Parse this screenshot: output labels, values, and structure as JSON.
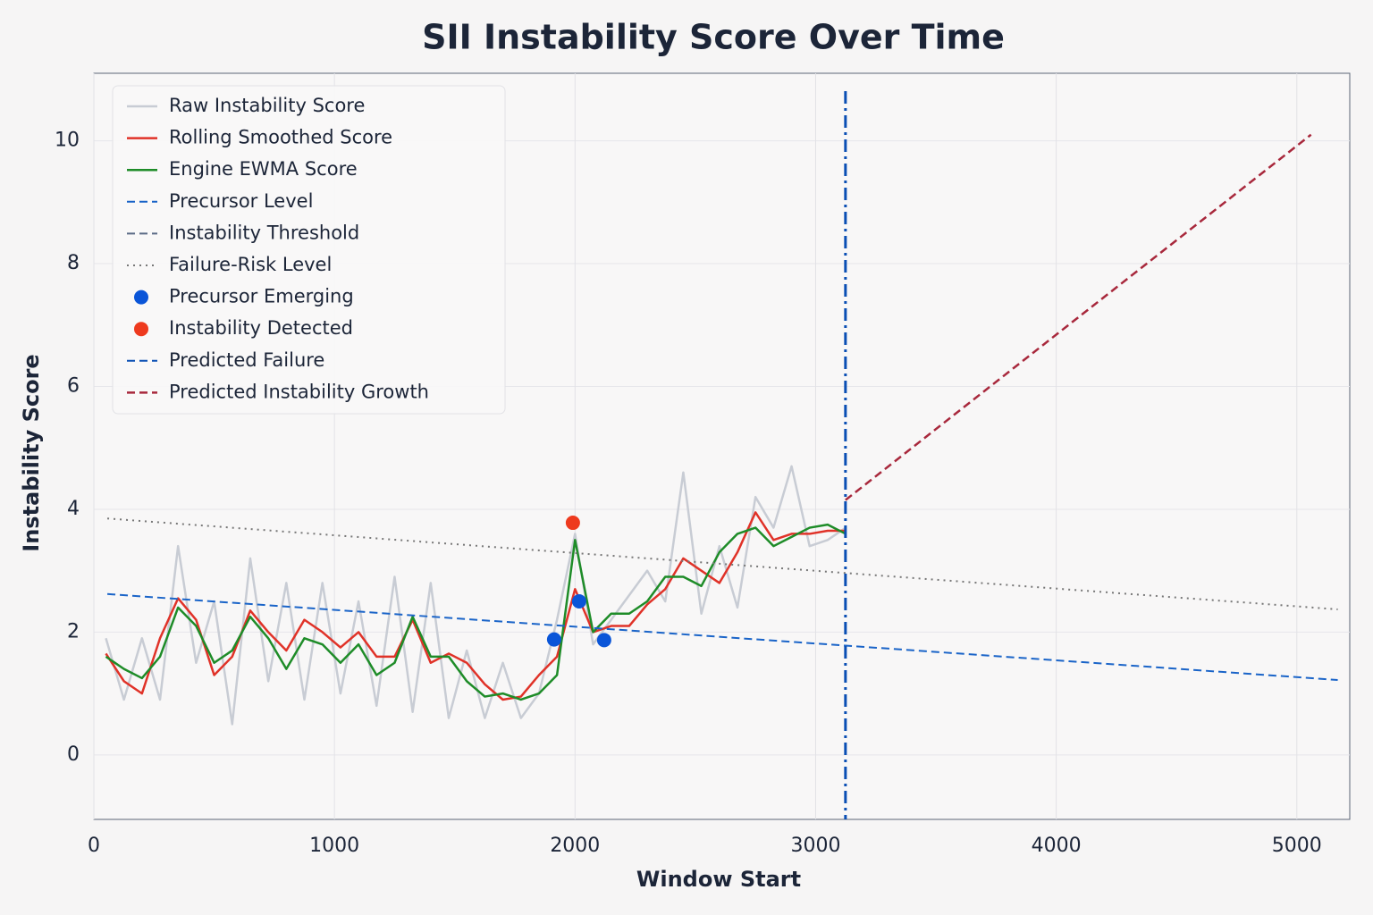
{
  "chart_data": {
    "type": "line",
    "title": "SII Instability Score Over Time",
    "xlabel": "Window Start",
    "ylabel": "Instability Score",
    "xlim": [
      0,
      5220
    ],
    "ylim": [
      -1.05,
      11.1
    ],
    "xticks": [
      0,
      1000,
      2000,
      3000,
      4000,
      5000
    ],
    "yticks": [
      0,
      2,
      4,
      6,
      8,
      10
    ],
    "grid": true,
    "legend": "upper left",
    "x": [
      50,
      125,
      200,
      275,
      350,
      425,
      500,
      575,
      650,
      725,
      800,
      875,
      950,
      1025,
      1100,
      1175,
      1250,
      1325,
      1400,
      1475,
      1550,
      1625,
      1700,
      1775,
      1850,
      1925,
      2000,
      2075,
      2150,
      2225,
      2300,
      2375,
      2450,
      2525,
      2600,
      2675,
      2750,
      2825,
      2900,
      2975,
      3050,
      3125
    ],
    "series": [
      {
        "name": "Raw Instability Score",
        "color": "#c8ccd4",
        "style": "solid",
        "width": 2.5,
        "kind": "line",
        "values": [
          1.9,
          0.9,
          1.9,
          0.9,
          3.4,
          1.5,
          2.5,
          0.5,
          3.2,
          1.2,
          2.8,
          0.9,
          2.8,
          1.0,
          2.5,
          0.8,
          2.9,
          0.7,
          2.8,
          0.6,
          1.7,
          0.6,
          1.5,
          0.6,
          1.0,
          2.2,
          3.6,
          1.8,
          2.2,
          2.6,
          3.0,
          2.5,
          4.6,
          2.3,
          3.4,
          2.4,
          4.2,
          3.7,
          4.7,
          3.4,
          3.5,
          3.7
        ]
      },
      {
        "name": "Rolling Smoothed Score",
        "color": "#e03228",
        "style": "solid",
        "width": 2.5,
        "kind": "line",
        "values": [
          1.65,
          1.2,
          1.0,
          1.9,
          2.55,
          2.2,
          1.3,
          1.6,
          2.35,
          2.0,
          1.7,
          2.2,
          2.0,
          1.75,
          2.0,
          1.6,
          1.6,
          2.2,
          1.5,
          1.65,
          1.5,
          1.15,
          0.9,
          0.95,
          1.3,
          1.6,
          2.7,
          2.0,
          2.1,
          2.1,
          2.45,
          2.7,
          3.2,
          3.0,
          2.8,
          3.3,
          3.95,
          3.5,
          3.6,
          3.6,
          3.65,
          3.65
        ]
      },
      {
        "name": "Engine EWMA Score",
        "color": "#1e8c28",
        "style": "solid",
        "width": 2.5,
        "kind": "line",
        "values": [
          1.6,
          1.4,
          1.25,
          1.6,
          2.4,
          2.1,
          1.5,
          1.7,
          2.25,
          1.9,
          1.4,
          1.9,
          1.8,
          1.5,
          1.8,
          1.3,
          1.5,
          2.25,
          1.6,
          1.6,
          1.2,
          0.95,
          1.0,
          0.9,
          1.0,
          1.3,
          3.5,
          2.0,
          2.3,
          2.3,
          2.5,
          2.9,
          2.9,
          2.75,
          3.3,
          3.6,
          3.7,
          3.4,
          3.55,
          3.7,
          3.75,
          3.6
        ]
      },
      {
        "name": "Precursor Level",
        "color": "#1a64c8",
        "style": "dashed",
        "width": 2,
        "kind": "line",
        "x": [
          56,
          5170
        ],
        "values": [
          2.62,
          1.22
        ]
      },
      {
        "name": "Instability Threshold",
        "color": "#5a6a85",
        "style": "dashed",
        "width": 2,
        "kind": "line",
        "x": [],
        "values": []
      },
      {
        "name": "Failure-Risk Level",
        "color": "#777777",
        "style": "dotted",
        "width": 2,
        "kind": "line",
        "x": [
          56,
          5170
        ],
        "values": [
          3.85,
          2.37
        ]
      },
      {
        "name": "Precursor Emerging",
        "color": "#0a55d8",
        "kind": "scatter",
        "x": [
          1913,
          2017,
          2121
        ],
        "values": [
          1.88,
          2.5,
          1.87
        ]
      },
      {
        "name": "Instability Detected",
        "color": "#ee3a1e",
        "kind": "scatter",
        "x": [
          1991
        ],
        "values": [
          3.78
        ]
      },
      {
        "name": "Predicted Failure",
        "color": "#0a4fb4",
        "style": "dashdot",
        "width": 3,
        "kind": "vline",
        "x": [
          3124
        ]
      },
      {
        "name": "Predicted Instability Growth",
        "color": "#a8283c",
        "style": "dashed",
        "width": 2.5,
        "kind": "line",
        "x": [
          3124,
          5059
        ],
        "values": [
          4.15,
          10.1
        ]
      }
    ]
  }
}
